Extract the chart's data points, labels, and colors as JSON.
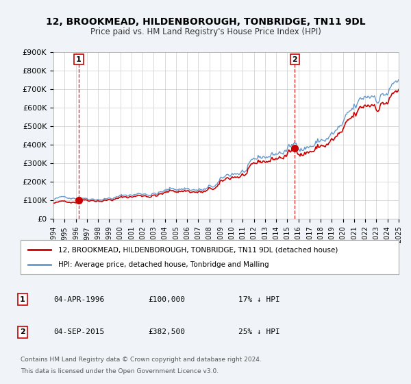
{
  "title": "12, BROOKMEAD, HILDENBOROUGH, TONBRIDGE, TN11 9DL",
  "subtitle": "Price paid vs. HM Land Registry's House Price Index (HPI)",
  "bg_color": "#f0f4f8",
  "plot_bg_color": "#ffffff",
  "grid_color": "#cccccc",
  "red_color": "#cc0000",
  "blue_color": "#6699cc",
  "marker1_date": 1996.27,
  "marker1_value": 100000,
  "marker2_date": 2015.68,
  "marker2_value": 382500,
  "xmin": 1994,
  "xmax": 2025,
  "ymin": 0,
  "ymax": 900000,
  "yticks": [
    0,
    100000,
    200000,
    300000,
    400000,
    500000,
    600000,
    700000,
    800000,
    900000
  ],
  "ytick_labels": [
    "£0",
    "£100K",
    "£200K",
    "£300K",
    "£400K",
    "£500K",
    "£600K",
    "£700K",
    "£800K",
    "£900K"
  ],
  "legend_label_red": "12, BROOKMEAD, HILDENBOROUGH, TONBRIDGE, TN11 9DL (detached house)",
  "legend_label_blue": "HPI: Average price, detached house, Tonbridge and Malling",
  "annotation1_label": "1",
  "annotation1_date_str": "04-APR-1996",
  "annotation1_price_str": "£100,000",
  "annotation1_hpi_str": "17% ↓ HPI",
  "annotation2_label": "2",
  "annotation2_date_str": "04-SEP-2015",
  "annotation2_price_str": "£382,500",
  "annotation2_hpi_str": "25% ↓ HPI",
  "footer1": "Contains HM Land Registry data © Crown copyright and database right 2024.",
  "footer2": "This data is licensed under the Open Government Licence v3.0."
}
